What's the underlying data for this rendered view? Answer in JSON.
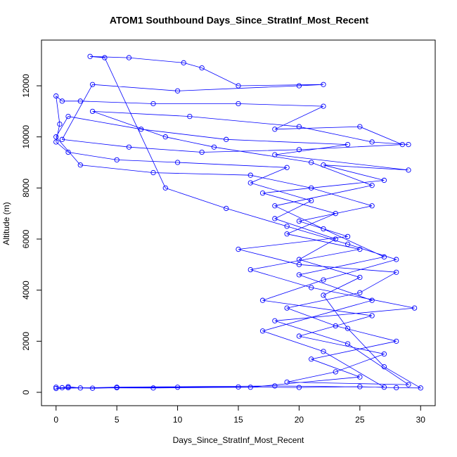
{
  "chart_data": {
    "type": "line",
    "title": "ATOM1 Southbound Days_Since_StratInf_Most_Recent",
    "x_label": "Days_Since_StratInf_Most_Recent",
    "y_label": "Altitude (m)",
    "xlim": [
      -1.2,
      31.2
    ],
    "ylim": [
      -523,
      13790
    ],
    "xticks": [
      0,
      5,
      10,
      15,
      20,
      25,
      30
    ],
    "yticks": [
      0,
      2000,
      4000,
      6000,
      8000,
      10000,
      12000
    ],
    "series": [
      {
        "color": "#0000ff",
        "x": [
          0,
          0.5,
          1,
          2,
          3,
          5,
          10,
          15,
          20,
          25,
          28,
          30,
          27,
          24,
          22,
          25,
          20,
          23,
          18,
          21,
          16,
          19,
          10,
          5,
          1,
          0,
          0.3,
          0,
          0.5,
          2,
          8,
          15,
          22,
          18,
          25,
          28.5,
          20,
          12,
          6,
          0.5,
          3,
          10,
          20,
          22,
          15,
          12,
          10.5,
          6,
          2.8,
          4,
          9,
          14,
          19,
          24,
          28,
          22,
          17,
          26,
          20,
          27,
          23,
          19,
          29,
          24,
          18,
          29.5,
          21,
          16,
          25,
          19,
          23,
          17,
          27,
          22,
          29,
          18,
          24,
          14,
          7,
          1,
          0,
          2,
          8,
          16,
          21,
          26,
          20,
          24,
          15,
          20,
          28,
          25,
          19,
          23,
          28,
          21,
          25,
          16,
          8,
          1,
          0,
          5,
          18,
          27,
          22,
          17,
          26,
          20,
          27,
          22,
          18,
          26,
          21,
          13,
          9,
          3,
          11,
          20,
          26,
          29
        ],
        "values": [
          200,
          180,
          220,
          170,
          160,
          180,
          200,
          210,
          190,
          220,
          180,
          170,
          1000,
          2500,
          3800,
          4500,
          5200,
          6000,
          6800,
          7500,
          8200,
          8800,
          9000,
          9100,
          9400,
          9800,
          10500,
          11600,
          11400,
          11400,
          11300,
          11300,
          11200,
          10300,
          10400,
          9700,
          9500,
          9400,
          9600,
          9900,
          12050,
          11800,
          12000,
          12050,
          12000,
          12700,
          12900,
          13100,
          13150,
          13100,
          8000,
          7200,
          6500,
          5800,
          5200,
          4400,
          3600,
          3000,
          2200,
          1500,
          800,
          400,
          300,
          1900,
          2800,
          3300,
          4100,
          4800,
          5600,
          6200,
          7000,
          7800,
          8300,
          8900,
          8700,
          9300,
          9700,
          9900,
          10300,
          10800,
          10000,
          8900,
          8600,
          8500,
          8000,
          7300,
          6700,
          6100,
          5600,
          5000,
          4700,
          3900,
          3300,
          2600,
          2000,
          1300,
          600,
          200,
          170,
          180,
          150,
          200,
          250,
          200,
          1600,
          2400,
          3600,
          4600,
          5300,
          6400,
          7300,
          8100,
          9000,
          9600,
          10000,
          11000,
          10800,
          10400,
          9800,
          9700
        ]
      }
    ]
  }
}
